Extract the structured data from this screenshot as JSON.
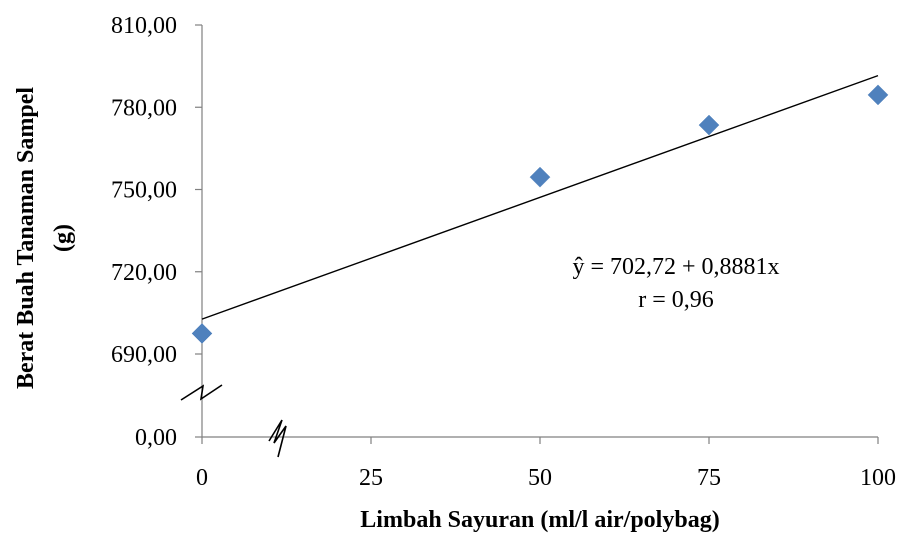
{
  "chart_data": {
    "type": "scatter",
    "xlabel": "Limbah Sayuran (ml/l air/polybag)",
    "ylabel_line1": "Berat Buah Tanaman Sampel",
    "ylabel_line2": "(g)",
    "x_ticks": [
      "0",
      "25",
      "50",
      "75",
      "100"
    ],
    "x_tick_values": [
      0,
      25,
      50,
      75,
      100
    ],
    "y_ticks": [
      "0,00",
      "690,00",
      "720,00",
      "750,00",
      "780,00",
      "810,00"
    ],
    "y_tick_values": [
      0,
      690,
      720,
      750,
      780,
      810
    ],
    "xlim": [
      0,
      100
    ],
    "ylim": [
      690,
      810
    ],
    "y_axis_break": true,
    "x_axis_break": true,
    "points": [
      {
        "x": 0,
        "y": 697.5
      },
      {
        "x": 50,
        "y": 754.5
      },
      {
        "x": 75,
        "y": 773.5
      },
      {
        "x": 100,
        "y": 784.5
      }
    ],
    "trendline": {
      "intercept": 702.72,
      "slope": 0.8881
    },
    "equation": "ŷ = 702,72 + 0,8881x",
    "r_text": "r = 0,96",
    "marker_color": "#4F81BD",
    "grid": false
  }
}
